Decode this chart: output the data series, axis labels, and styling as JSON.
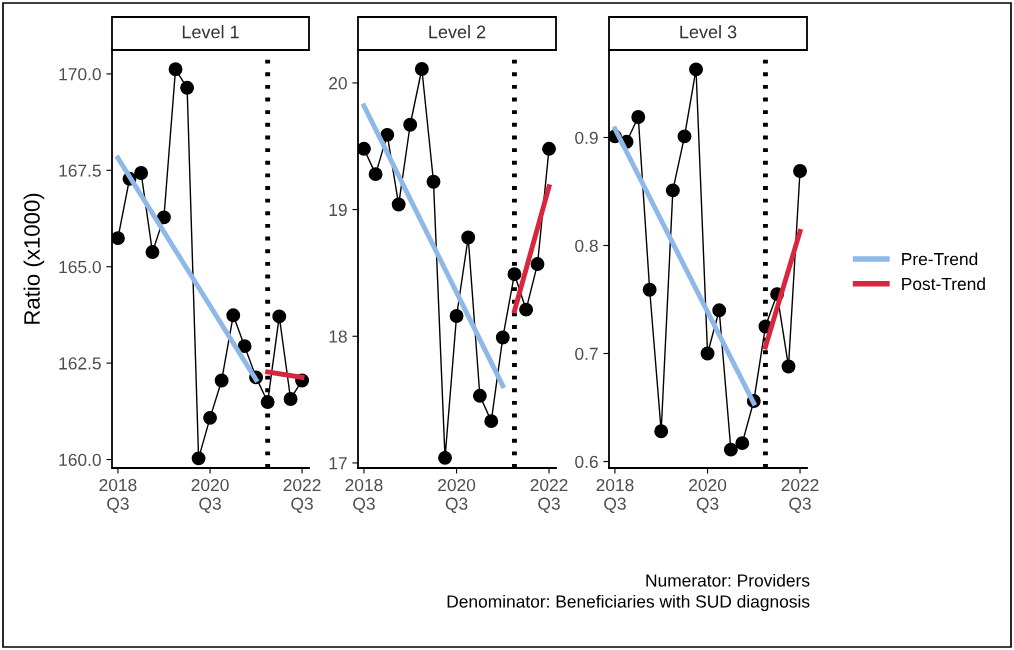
{
  "chart_data": [
    {
      "type": "line",
      "title": "Level 1",
      "ylabel": "Ratio (x1000)",
      "x": [
        "2018-07",
        "2018-10",
        "2019-01",
        "2019-04",
        "2019-07",
        "2019-10",
        "2020-01",
        "2020-04",
        "2020-07",
        "2020-10",
        "2021-01",
        "2021-04",
        "2021-07",
        "2021-10",
        "2022-01",
        "2022-04",
        "2022-07"
      ],
      "series": [
        {
          "color": "#000000",
          "marker": "circle",
          "values": [
            165.74,
            167.28,
            167.43,
            165.38,
            166.28,
            170.12,
            169.64,
            160.03,
            161.08,
            162.05,
            163.74,
            162.94,
            162.13,
            161.49,
            163.71,
            161.57,
            162.05
          ]
        },
        {
          "color": "#8db8e8",
          "marker": "none",
          "x": [
            "2018-07",
            "2021-07"
          ],
          "values": [
            167.82,
            162.07
          ]
        },
        {
          "color": "#d7263d",
          "marker": "none",
          "x": [
            "2021-10",
            "2022-07"
          ],
          "values": [
            162.27,
            162.13
          ]
        }
      ],
      "xlim": [
        "2018-05-15",
        "2022-08-25"
      ],
      "xticks": [
        {
          "value": "2018-07",
          "label": "2018\nQ3"
        },
        {
          "value": "2020-07",
          "label": "2020\nQ3"
        },
        {
          "value": "2022-07",
          "label": "2022\nQ3"
        }
      ],
      "ylim": [
        159.78,
        170.62
      ],
      "yticks": [
        {
          "value": 160,
          "label": "160.0"
        },
        {
          "value": 162.5,
          "label": "162.5"
        },
        {
          "value": 165,
          "label": "165.0"
        },
        {
          "value": 167.5,
          "label": "167.5"
        },
        {
          "value": 170,
          "label": "170.0"
        }
      ],
      "ref_lines": [
        {
          "axis": "x",
          "value": "2021-10",
          "color": "#000000",
          "line_style": "dotted"
        }
      ],
      "grid": false
    },
    {
      "type": "line",
      "title": "Level 2",
      "x": [
        "2018-07",
        "2018-10",
        "2019-01",
        "2019-04",
        "2019-07",
        "2019-10",
        "2020-01",
        "2020-04",
        "2020-07",
        "2020-10",
        "2021-01",
        "2021-04",
        "2021-07",
        "2021-10",
        "2022-01",
        "2022-04",
        "2022-07"
      ],
      "series": [
        {
          "color": "#000000",
          "marker": "circle",
          "values": [
            19.48,
            19.28,
            19.59,
            19.04,
            19.67,
            20.11,
            19.22,
            17.04,
            18.16,
            18.78,
            17.53,
            17.33,
            17.99,
            18.49,
            18.21,
            18.57,
            19.48
          ]
        },
        {
          "color": "#8db8e8",
          "marker": "none",
          "x": [
            "2018-07",
            "2021-07"
          ],
          "values": [
            19.82,
            17.61
          ]
        },
        {
          "color": "#d7263d",
          "marker": "none",
          "x": [
            "2021-10",
            "2022-07"
          ],
          "values": [
            18.2,
            19.18
          ]
        }
      ],
      "xlim": [
        "2018-05-15",
        "2022-08-25"
      ],
      "xticks": [
        {
          "value": "2018-07",
          "label": "2018\nQ3"
        },
        {
          "value": "2020-07",
          "label": "2020\nQ3"
        },
        {
          "value": "2022-07",
          "label": "2022\nQ3"
        }
      ],
      "ylim": [
        16.96,
        20.26
      ],
      "yticks": [
        17,
        18,
        19,
        20
      ],
      "ref_lines": [
        {
          "axis": "x",
          "value": "2021-10",
          "color": "#000000",
          "line_style": "dotted"
        }
      ],
      "grid": false
    },
    {
      "type": "line",
      "title": "Level 3",
      "x": [
        "2018-07",
        "2018-10",
        "2019-01",
        "2019-04",
        "2019-07",
        "2019-10",
        "2020-01",
        "2020-04",
        "2020-07",
        "2020-10",
        "2021-01",
        "2021-04",
        "2021-07",
        "2021-10",
        "2022-01",
        "2022-04",
        "2022-07"
      ],
      "series": [
        {
          "color": "#000000",
          "marker": "circle",
          "values": [
            0.901,
            0.896,
            0.919,
            0.759,
            0.628,
            0.851,
            0.901,
            0.963,
            0.7,
            0.74,
            0.611,
            0.617,
            0.656,
            0.725,
            0.755,
            0.688,
            0.869
          ]
        },
        {
          "name": "Pre-Trend",
          "color": "#8db8e8",
          "marker": "none",
          "x": [
            "2018-07",
            "2021-07"
          ],
          "values": [
            0.908,
            0.654
          ]
        },
        {
          "name": "Post-Trend",
          "color": "#d7263d",
          "marker": "none",
          "x": [
            "2021-10",
            "2022-07"
          ],
          "values": [
            0.706,
            0.813
          ]
        }
      ],
      "xlim": [
        "2018-05-15",
        "2022-08-25"
      ],
      "xticks": [
        {
          "value": "2018-07",
          "label": "2018\nQ3"
        },
        {
          "value": "2020-07",
          "label": "2020\nQ3"
        },
        {
          "value": "2022-07",
          "label": "2022\nQ3"
        }
      ],
      "ylim": [
        0.594,
        0.981
      ],
      "yticks": [
        0.6,
        0.7,
        0.8,
        0.9
      ],
      "ref_lines": [
        {
          "axis": "x",
          "value": "2021-10",
          "color": "#000000",
          "line_style": "dotted"
        }
      ],
      "grid": false,
      "legend": "right",
      "annotations": [
        "Numerator: Providers",
        "Denominator: Beneficiaries with SUD diagnosis"
      ]
    }
  ]
}
